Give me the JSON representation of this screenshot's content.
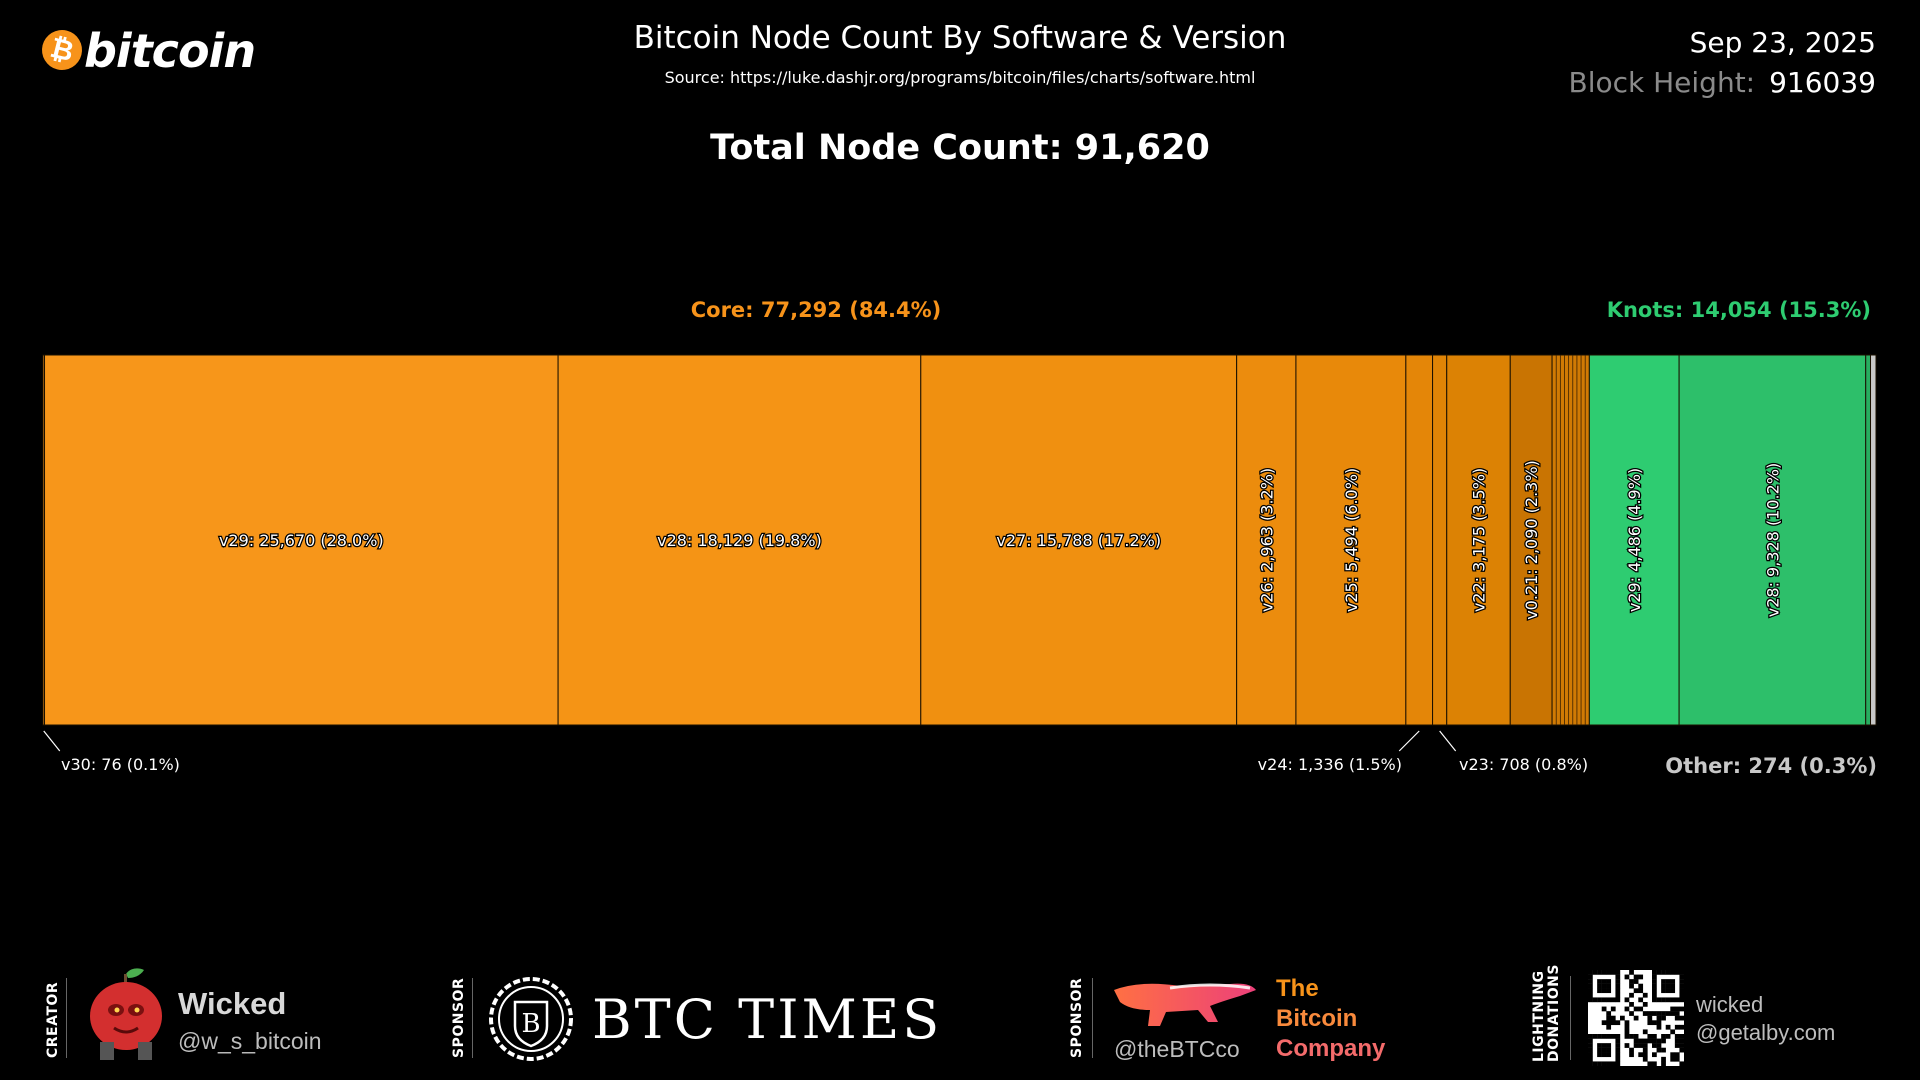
{
  "header": {
    "logo_text": "bitcoin",
    "logo_symbol": "₿",
    "title": "Bitcoin Node Count By Software & Version",
    "source": "Source: https://luke.dashjr.org/programs/bitcoin/files/charts/software.html",
    "date": "Sep 23, 2025",
    "block_height_label": "Block Height:",
    "block_height_value": "916039",
    "total": "Total Node Count: 91,620"
  },
  "groups": {
    "core": "Core: 77,292 (84.4%)",
    "knots": "Knots: 14,054 (15.3%)",
    "other": "Other: 274 (0.3%)"
  },
  "colors": {
    "core": "#f7931a",
    "knots": "#2ecc71",
    "other": "#c8c8c8",
    "background": "#000000"
  },
  "chart_data": {
    "type": "bar",
    "subtype": "stacked-100-percent-horizontal",
    "total": 91620,
    "segments": [
      {
        "group": "Core",
        "name": "v30",
        "value": 76,
        "percent": 0.1,
        "label": "v30:  76 (0.1%)",
        "color": "#f7931a",
        "label_style": "callout"
      },
      {
        "group": "Core",
        "name": "v29",
        "value": 25670,
        "percent": 28.0,
        "label": "v29:  25,670 (28.0%)",
        "color": "#f7961a",
        "label_style": "horizontal"
      },
      {
        "group": "Core",
        "name": "v28",
        "value": 18129,
        "percent": 19.8,
        "label": "v28:  18,129 (19.8%)",
        "color": "#f59415",
        "label_style": "horizontal"
      },
      {
        "group": "Core",
        "name": "v27",
        "value": 15788,
        "percent": 17.2,
        "label": "v27:  15,788 (17.2%)",
        "color": "#f09010",
        "label_style": "horizontal"
      },
      {
        "group": "Core",
        "name": "v26",
        "value": 2963,
        "percent": 3.2,
        "label": "v26:  2,963 (3.2%)",
        "color": "#ec8c0d",
        "label_style": "vertical"
      },
      {
        "group": "Core",
        "name": "v25",
        "value": 5494,
        "percent": 6.0,
        "label": "v25:  5,494 (6.0%)",
        "color": "#e8890a",
        "label_style": "vertical"
      },
      {
        "group": "Core",
        "name": "v24",
        "value": 1336,
        "percent": 1.5,
        "label": "v24:  1,336 (1.5%)",
        "color": "#e48608",
        "label_style": "callout"
      },
      {
        "group": "Core",
        "name": "v23",
        "value": 708,
        "percent": 0.8,
        "label": "v23:  708 (0.8%)",
        "color": "#e08406",
        "label_style": "callout"
      },
      {
        "group": "Core",
        "name": "v22",
        "value": 3175,
        "percent": 3.5,
        "label": "v22:  3,175 (3.5%)",
        "color": "#dc8204",
        "label_style": "vertical"
      },
      {
        "group": "Core",
        "name": "v0.21",
        "value": 2090,
        "percent": 2.3,
        "label": "v0.21:  2,090 (2.3%)",
        "color": "#c97402",
        "label_style": "vertical"
      },
      {
        "group": "Core",
        "name": "older",
        "value": 1863,
        "percent": 2.0,
        "label": "",
        "color": "#d07a04",
        "label_style": "none"
      },
      {
        "group": "Knots",
        "name": "v29",
        "value": 4486,
        "percent": 4.9,
        "label": "v29:  4,486 (4.9%)",
        "color": "#2ecc71",
        "label_style": "vertical"
      },
      {
        "group": "Knots",
        "name": "v28",
        "value": 9328,
        "percent": 10.2,
        "label": "v28:  9,328 (10.2%)",
        "color": "#2dbf6a",
        "label_style": "vertical"
      },
      {
        "group": "Knots",
        "name": "older",
        "value": 240,
        "percent": 0.3,
        "label": "",
        "color": "#27ae60",
        "label_style": "none"
      },
      {
        "group": "Other",
        "name": "other",
        "value": 274,
        "percent": 0.3,
        "label": "",
        "color": "#c8c8c8",
        "label_style": "none"
      }
    ]
  },
  "footer": {
    "creator_tag": "CREATOR",
    "creator_name": "Wicked",
    "creator_handle": "@w_s_bitcoin",
    "sponsor_tag": "SPONSOR",
    "sponsor1_name": "BTC TIMES",
    "sponsor1_emblem_letter": "B",
    "sponsor2_handle": "@theBTCco",
    "sponsor2_name": [
      "The",
      "Bitcoin",
      "Company"
    ],
    "lightning_tag_1": "LIGHTNING",
    "lightning_tag_2": "DONATIONS",
    "lightning_user": "wicked",
    "lightning_domain": "@getalby.com",
    "creator_avatar_icon": "apple-avatar-icon",
    "sponsor2_logo_icon": "honey-badger-icon"
  }
}
